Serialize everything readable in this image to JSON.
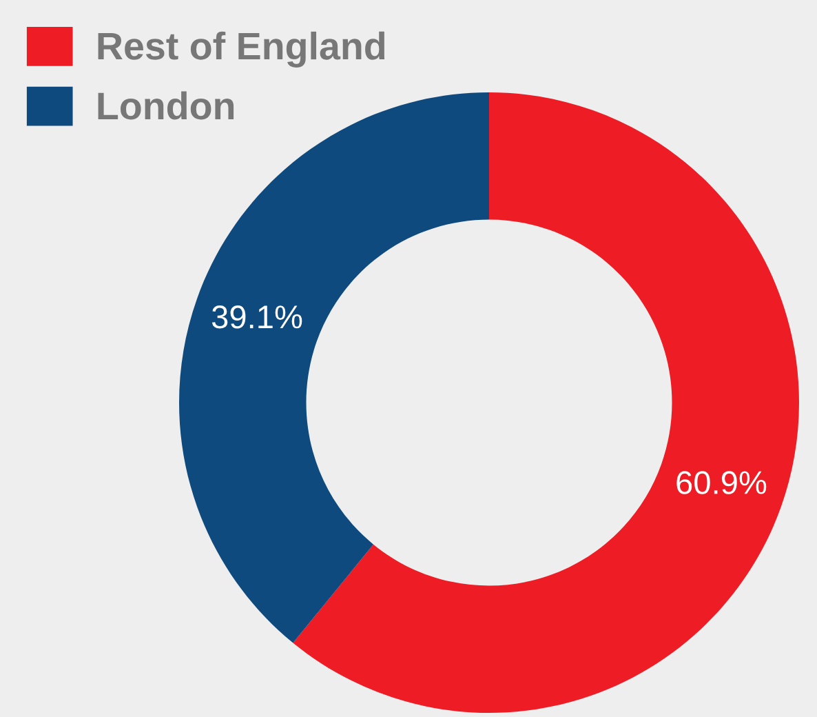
{
  "chart_data": {
    "type": "donut",
    "categories": [
      "Rest of England",
      "London"
    ],
    "values": [
      60.9,
      39.1
    ],
    "colors": [
      "#ee1c25",
      "#0e4a7e"
    ],
    "value_labels": [
      "60.9%",
      "39.1%"
    ],
    "legend": "top left"
  }
}
